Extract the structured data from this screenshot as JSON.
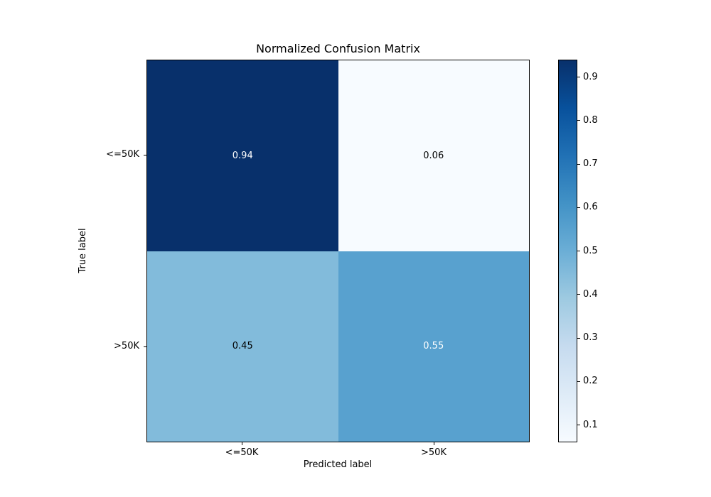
{
  "figure": {
    "background": "#ffffff"
  },
  "chart_data": {
    "type": "heatmap",
    "title": "Normalized Confusion Matrix",
    "xlabel": "Predicted label",
    "ylabel": "True label",
    "x_tick_labels": [
      "<=50K",
      ">50K"
    ],
    "y_tick_labels": [
      "<=50K",
      ">50K"
    ],
    "matrix": [
      [
        0.94,
        0.06
      ],
      [
        0.45,
        0.55
      ]
    ],
    "cells": [
      {
        "row": 0,
        "col": 0,
        "value": "0.94",
        "bg": "#08306b",
        "text_color": "#ffffff"
      },
      {
        "row": 0,
        "col": 1,
        "value": "0.06",
        "bg": "#f7fbff",
        "text_color": "#000000"
      },
      {
        "row": 1,
        "col": 0,
        "value": "0.45",
        "bg": "#82bbdb",
        "text_color": "#000000"
      },
      {
        "row": 1,
        "col": 1,
        "value": "0.55",
        "bg": "#58a1cf",
        "text_color": "#ffffff"
      }
    ],
    "colormap": "Blues",
    "grid": false,
    "legend_position": "right-colorbar",
    "colorbar": {
      "vmin": 0.06,
      "vmax": 0.94,
      "ticks": [
        "0.9",
        "0.8",
        "0.7",
        "0.6",
        "0.5",
        "0.4",
        "0.3",
        "0.2",
        "0.1"
      ],
      "gradient_stops": [
        "#f7fbff",
        "#deebf7",
        "#c6dbef",
        "#9ecae1",
        "#6baed6",
        "#4292c6",
        "#2171b5",
        "#08519c",
        "#08306b"
      ]
    }
  }
}
